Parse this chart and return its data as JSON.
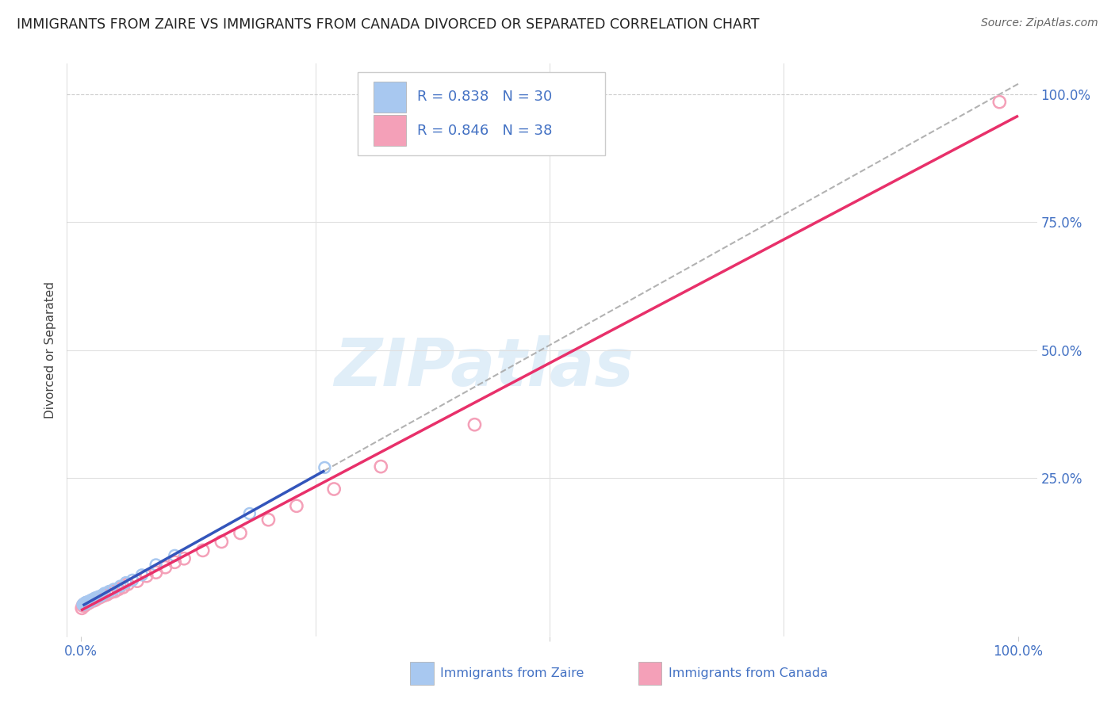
{
  "title": "IMMIGRANTS FROM ZAIRE VS IMMIGRANTS FROM CANADA DIVORCED OR SEPARATED CORRELATION CHART",
  "source": "Source: ZipAtlas.com",
  "ylabel": "Divorced or Separated",
  "watermark": "ZIPatlas",
  "series_zaire": {
    "color": "#a8c8f0",
    "edge_color": "#6699cc",
    "line_color": "#3355bb",
    "R": 0.838,
    "N": 30,
    "label": "Immigrants from Zaire",
    "x": [
      0.002,
      0.003,
      0.004,
      0.004,
      0.005,
      0.005,
      0.006,
      0.006,
      0.007,
      0.008,
      0.009,
      0.01,
      0.011,
      0.012,
      0.013,
      0.015,
      0.018,
      0.02,
      0.022,
      0.025,
      0.03,
      0.035,
      0.042,
      0.048,
      0.055,
      0.065,
      0.08,
      0.1,
      0.18,
      0.26
    ],
    "y": [
      0.002,
      0.003,
      0.003,
      0.005,
      0.004,
      0.006,
      0.005,
      0.007,
      0.006,
      0.008,
      0.008,
      0.01,
      0.01,
      0.012,
      0.012,
      0.015,
      0.017,
      0.018,
      0.02,
      0.024,
      0.028,
      0.032,
      0.038,
      0.045,
      0.05,
      0.06,
      0.08,
      0.098,
      0.18,
      0.27
    ]
  },
  "series_canada": {
    "color": "#f4a0b8",
    "edge_color": "#e06080",
    "line_color": "#e8306a",
    "R": 0.846,
    "N": 38,
    "label": "Immigrants from Canada",
    "x": [
      0.001,
      0.002,
      0.003,
      0.004,
      0.005,
      0.006,
      0.007,
      0.008,
      0.009,
      0.01,
      0.012,
      0.014,
      0.016,
      0.018,
      0.02,
      0.022,
      0.025,
      0.028,
      0.032,
      0.036,
      0.04,
      0.045,
      0.05,
      0.06,
      0.07,
      0.08,
      0.09,
      0.1,
      0.11,
      0.13,
      0.15,
      0.17,
      0.2,
      0.23,
      0.27,
      0.32,
      0.42,
      0.98
    ],
    "y": [
      -0.005,
      0.0,
      0.002,
      0.0,
      0.003,
      0.005,
      0.004,
      0.006,
      0.006,
      0.008,
      0.01,
      0.01,
      0.012,
      0.015,
      0.016,
      0.018,
      0.02,
      0.022,
      0.026,
      0.028,
      0.032,
      0.036,
      0.042,
      0.048,
      0.058,
      0.065,
      0.075,
      0.085,
      0.092,
      0.108,
      0.125,
      0.142,
      0.168,
      0.195,
      0.228,
      0.272,
      0.354,
      0.985
    ]
  },
  "background_color": "#ffffff",
  "grid_color": "#e0e0e0",
  "title_color": "#222222",
  "tick_label_color": "#4472c4",
  "legend_text_color": "#4472c4",
  "zaire_line_slope": 1.038,
  "zaire_line_intercept": -0.002,
  "canada_line_slope": 0.865,
  "canada_line_intercept": -0.025
}
